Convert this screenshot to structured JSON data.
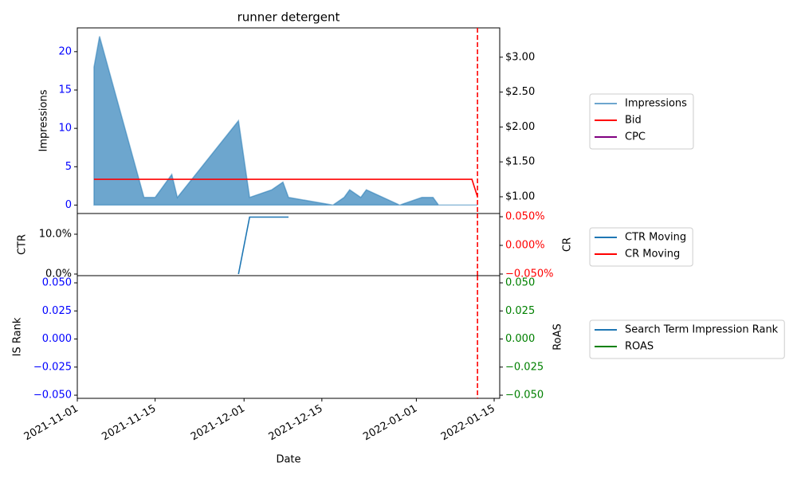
{
  "chart_data": [
    {
      "type": "line",
      "title": "runner detergent",
      "ylabel": "Impressions",
      "xlim": [
        "2021-11-01",
        "2022-01-16"
      ],
      "ylim": [
        -1.1,
        23.1
      ],
      "yticks": [
        0,
        5,
        10,
        15,
        20
      ],
      "ytick_color": "blue",
      "y2lim": [
        0.76,
        3.42
      ],
      "y2ticks": [
        {
          "value": 1,
          "label": "$1.00"
        },
        {
          "value": 1.5,
          "label": "$1.50"
        },
        {
          "value": 2,
          "label": "$2.00"
        },
        {
          "value": 2.5,
          "label": "$2.50"
        },
        {
          "value": 3,
          "label": "$3.00"
        }
      ],
      "y2tick_color": "black",
      "vline": "2022-01-12",
      "vline_color": "red",
      "series": [
        {
          "name": "Impressions",
          "color": "#1f77b4",
          "fill": true,
          "x": [
            "2021-11-04",
            "2021-11-05",
            "2021-11-13",
            "2021-11-15",
            "2021-11-18",
            "2021-11-19",
            "2021-11-30",
            "2021-12-02",
            "2021-12-06",
            "2021-12-08",
            "2021-12-09",
            "2021-12-17",
            "2021-12-19",
            "2021-12-20",
            "2021-12-22",
            "2021-12-23",
            "2021-12-29",
            "2022-01-02",
            "2022-01-04",
            "2022-01-05",
            "2022-01-12"
          ],
          "values": [
            18,
            22,
            1,
            1,
            4,
            1,
            11,
            1,
            2,
            3,
            1,
            0,
            1,
            2,
            1,
            2,
            0,
            1,
            1,
            0,
            0
          ]
        },
        {
          "name": "Bid",
          "color": "red",
          "axis": "y2",
          "x": [
            "2021-11-04",
            "2022-01-11",
            "2022-01-12"
          ],
          "values": [
            1.25,
            1.25,
            1.0
          ]
        },
        {
          "name": "CPC",
          "color": "purple",
          "axis": "y2",
          "x": [],
          "values": []
        }
      ]
    },
    {
      "type": "line",
      "ylabel": "CTR",
      "y2label": "CR",
      "xlim": [
        "2021-11-01",
        "2022-01-16"
      ],
      "ylim": [
        -0.4,
        15.2
      ],
      "yticks": [
        {
          "value": 0,
          "label": "0.0%"
        },
        {
          "value": 10,
          "label": "10.0%"
        }
      ],
      "ytick_color": "black",
      "y2lim": [
        -0.0528,
        0.0556
      ],
      "y2ticks": [
        {
          "value": -0.05,
          "label": "−0.050%"
        },
        {
          "value": 0,
          "label": "0.000%"
        },
        {
          "value": 0.05,
          "label": "0.050%"
        }
      ],
      "y2tick_color": "red",
      "vline": "2022-01-12",
      "vline_color": "red",
      "series": [
        {
          "name": "CTR Moving",
          "color": "#1f77b4",
          "x": [
            "2021-11-30",
            "2021-12-02",
            "2021-12-09"
          ],
          "values": [
            0,
            14.3,
            14.3
          ]
        },
        {
          "name": "CR Moving",
          "color": "red",
          "axis": "y2",
          "x": [],
          "values": []
        }
      ]
    },
    {
      "type": "line",
      "ylabel": "IS Rank",
      "y2label": "RoAS",
      "xlabel": "Date",
      "xlim": [
        "2021-11-01",
        "2022-01-16"
      ],
      "xticks": [
        "2021-11-01",
        "2021-11-15",
        "2021-12-01",
        "2021-12-15",
        "2022-01-01",
        "2022-01-15"
      ],
      "ylim": [
        -0.0528,
        0.0564
      ],
      "yticks": [
        {
          "value": -0.05,
          "label": "−0.050"
        },
        {
          "value": -0.025,
          "label": "−0.025"
        },
        {
          "value": 0,
          "label": "0.000"
        },
        {
          "value": 0.025,
          "label": "0.025"
        },
        {
          "value": 0.05,
          "label": "0.050"
        }
      ],
      "ytick_color": "blue",
      "y2lim": [
        -0.0528,
        0.0564
      ],
      "y2ticks": [
        {
          "value": -0.05,
          "label": "−0.050"
        },
        {
          "value": -0.025,
          "label": "−0.025"
        },
        {
          "value": 0,
          "label": "0.000"
        },
        {
          "value": 0.025,
          "label": "0.025"
        },
        {
          "value": 0.05,
          "label": "0.050"
        }
      ],
      "y2tick_color": "green",
      "vline": "2022-01-12",
      "vline_color": "red",
      "series": [
        {
          "name": "Search Term Impression Rank",
          "color": "#1f77b4",
          "x": [],
          "values": []
        },
        {
          "name": "ROAS",
          "color": "green",
          "axis": "y2",
          "x": [],
          "values": []
        }
      ]
    }
  ]
}
